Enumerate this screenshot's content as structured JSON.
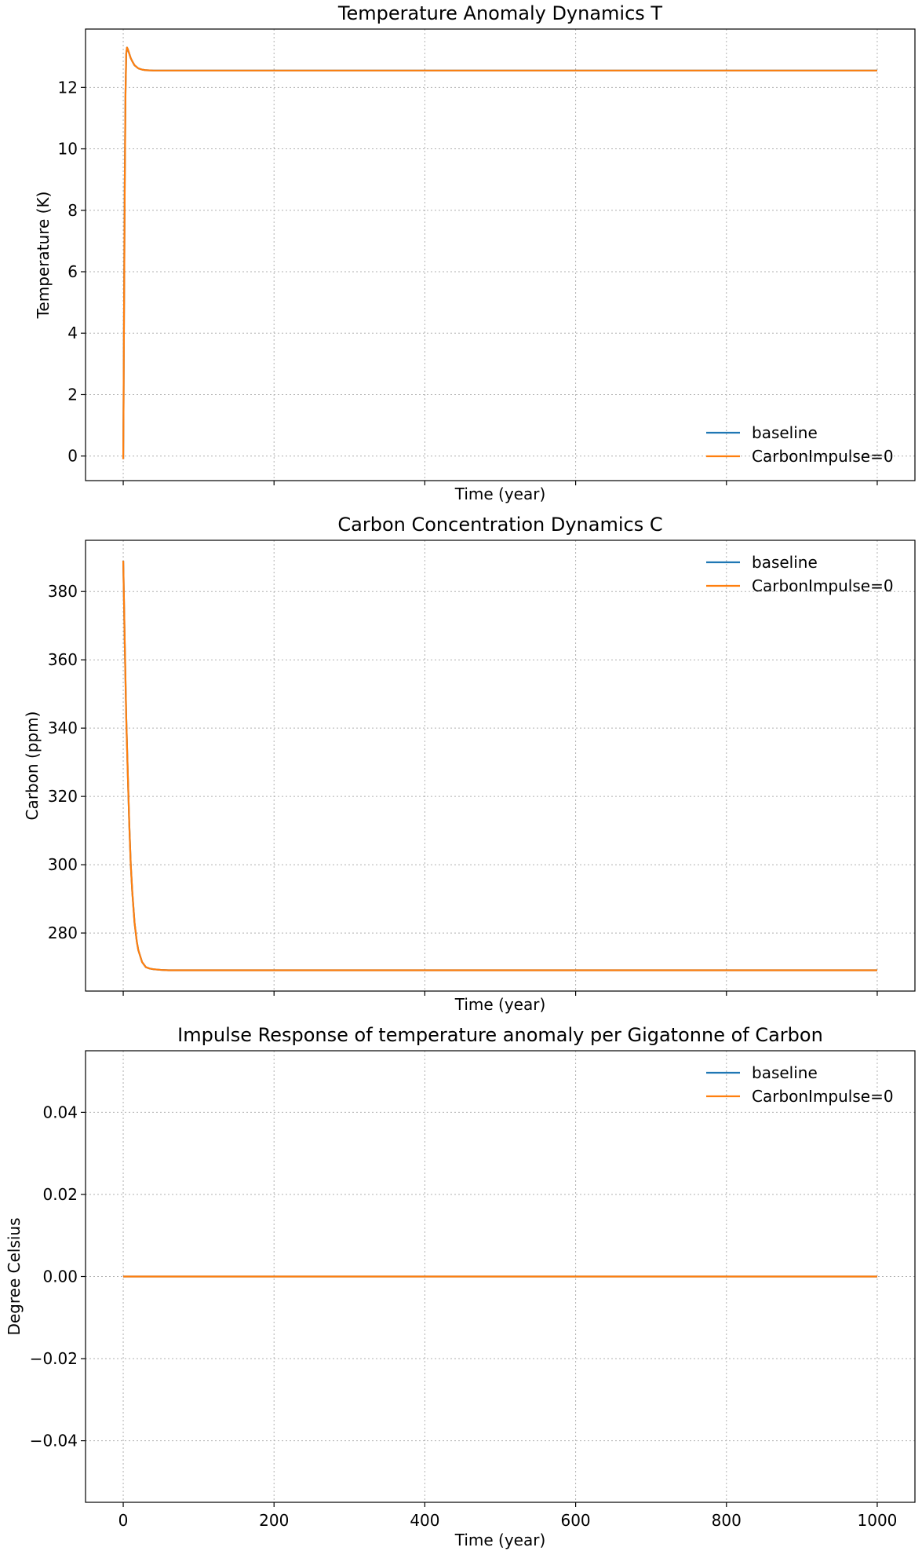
{
  "chart_data": [
    {
      "type": "line",
      "title": "Temperature Anomaly Dynamics T",
      "xlabel": "Time (year)",
      "ylabel": "Temperature (K)",
      "xlim": [
        -50,
        1050
      ],
      "ylim": [
        -0.8,
        13.9
      ],
      "xticks": [
        0,
        200,
        400,
        600,
        800,
        1000
      ],
      "xticks_labeled": false,
      "yticks": [
        0,
        2,
        4,
        6,
        8,
        10,
        12
      ],
      "ytick_labels": [
        "0",
        "2",
        "4",
        "6",
        "8",
        "10",
        "12"
      ],
      "grid": true,
      "legend_position": "lower-right",
      "series": [
        {
          "name": "baseline",
          "color": "#1f77b4",
          "x": [
            0,
            0.5,
            1,
            2,
            3,
            4,
            5,
            6,
            8,
            10,
            12,
            15,
            20,
            25,
            30,
            40,
            50,
            60,
            80,
            100,
            200,
            300,
            400,
            500,
            600,
            700,
            800,
            900,
            1000
          ],
          "y": [
            -0.1,
            2.0,
            4.5,
            8.8,
            11.8,
            13.1,
            13.3,
            13.25,
            13.1,
            12.95,
            12.85,
            12.72,
            12.62,
            12.58,
            12.56,
            12.55,
            12.55,
            12.55,
            12.55,
            12.55,
            12.55,
            12.55,
            12.55,
            12.55,
            12.55,
            12.55,
            12.55,
            12.55,
            12.55
          ]
        },
        {
          "name": "CarbonImpulse=0",
          "color": "#ff7f0e",
          "x": [
            0,
            0.5,
            1,
            2,
            3,
            4,
            5,
            6,
            8,
            10,
            12,
            15,
            20,
            25,
            30,
            40,
            50,
            60,
            80,
            100,
            200,
            300,
            400,
            500,
            600,
            700,
            800,
            900,
            1000
          ],
          "y": [
            -0.1,
            2.0,
            4.5,
            8.8,
            11.8,
            13.1,
            13.3,
            13.25,
            13.1,
            12.95,
            12.85,
            12.72,
            12.62,
            12.58,
            12.56,
            12.55,
            12.55,
            12.55,
            12.55,
            12.55,
            12.55,
            12.55,
            12.55,
            12.55,
            12.55,
            12.55,
            12.55,
            12.55,
            12.55
          ]
        }
      ]
    },
    {
      "type": "line",
      "title": "Carbon Concentration Dynamics C",
      "xlabel": "Time (year)",
      "ylabel": "Carbon (ppm)",
      "xlim": [
        -50,
        1050
      ],
      "ylim": [
        263,
        395
      ],
      "xticks": [
        0,
        200,
        400,
        600,
        800,
        1000
      ],
      "xticks_labeled": false,
      "yticks": [
        280,
        300,
        320,
        340,
        360,
        380
      ],
      "ytick_labels": [
        "280",
        "300",
        "320",
        "340",
        "360",
        "380"
      ],
      "grid": true,
      "legend_position": "upper-right",
      "series": [
        {
          "name": "baseline",
          "color": "#1f77b4",
          "x": [
            0,
            2,
            4,
            6,
            8,
            10,
            12,
            15,
            18,
            20,
            25,
            30,
            35,
            40,
            50,
            60,
            70,
            80,
            100,
            200,
            400,
            600,
            800,
            1000
          ],
          "y": [
            389,
            365,
            343,
            327,
            312,
            300,
            292,
            283,
            277.5,
            275,
            271.5,
            270,
            269.6,
            269.4,
            269.2,
            269.1,
            269.1,
            269.1,
            269.1,
            269.1,
            269.1,
            269.1,
            269.1,
            269.1
          ]
        },
        {
          "name": "CarbonImpulse=0",
          "color": "#ff7f0e",
          "x": [
            0,
            2,
            4,
            6,
            8,
            10,
            12,
            15,
            18,
            20,
            25,
            30,
            35,
            40,
            50,
            60,
            70,
            80,
            100,
            200,
            400,
            600,
            800,
            1000
          ],
          "y": [
            389,
            365,
            343,
            327,
            312,
            300,
            292,
            283,
            277.5,
            275,
            271.5,
            270,
            269.6,
            269.4,
            269.2,
            269.1,
            269.1,
            269.1,
            269.1,
            269.1,
            269.1,
            269.1,
            269.1,
            269.1
          ]
        }
      ]
    },
    {
      "type": "line",
      "title": "Impulse Response of temperature anomaly per Gigatonne of Carbon",
      "xlabel": "Time (year)",
      "ylabel": "Degree Celsius",
      "xlim": [
        -50,
        1050
      ],
      "ylim": [
        -0.055,
        0.055
      ],
      "xticks": [
        0,
        200,
        400,
        600,
        800,
        1000
      ],
      "xticks_labeled": true,
      "xtick_labels": [
        "0",
        "200",
        "400",
        "600",
        "800",
        "1000"
      ],
      "yticks": [
        -0.04,
        -0.02,
        0.0,
        0.02,
        0.04
      ],
      "ytick_labels": [
        "−0.04",
        "−0.02",
        "0.00",
        "0.02",
        "0.04"
      ],
      "grid": true,
      "legend_position": "upper-right",
      "series": [
        {
          "name": "baseline",
          "color": "#1f77b4",
          "x": [
            0,
            1000
          ],
          "y": [
            0,
            0
          ]
        },
        {
          "name": "CarbonImpulse=0",
          "color": "#ff7f0e",
          "x": [
            0,
            1000
          ],
          "y": [
            0,
            0
          ]
        }
      ]
    }
  ]
}
